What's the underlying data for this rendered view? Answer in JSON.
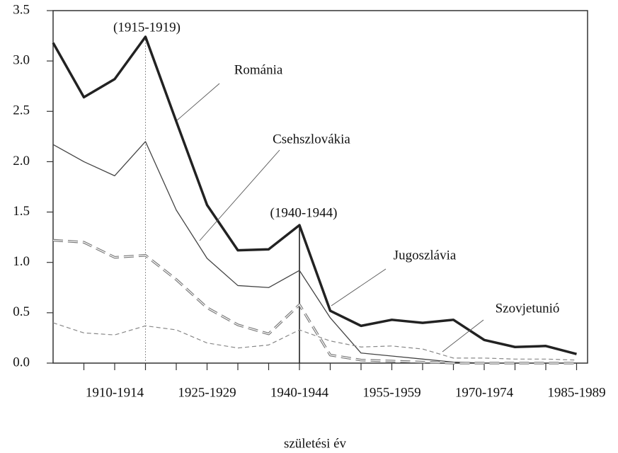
{
  "chart_data": {
    "type": "line",
    "x_label": "születési év",
    "annotations": [
      "(1915-1919)",
      "(1940-1944)"
    ],
    "categories": [
      null,
      null,
      "1910-1914",
      null,
      null,
      "1925-1929",
      null,
      null,
      "1940-1944",
      null,
      null,
      "1955-1959",
      null,
      null,
      "1970-1974",
      null,
      null,
      "1985-1989"
    ],
    "ylim": [
      0,
      3.5
    ],
    "yticks": [
      {
        "value": 0,
        "label": "0.0"
      },
      0.5,
      {
        "value": 1,
        "label": "1.0"
      },
      1.5,
      {
        "value": 2,
        "label": "2.0"
      },
      2.5,
      {
        "value": 3,
        "label": "3.0"
      },
      3.5
    ],
    "series": [
      {
        "name": "Románia",
        "color": "#222222",
        "values": [
          3.18,
          2.64,
          2.82,
          3.24,
          2.4,
          1.57,
          1.12,
          1.13,
          1.37,
          0.52,
          0.37,
          0.43,
          0.4,
          0.43,
          0.23,
          0.16,
          0.17,
          0.09
        ]
      },
      {
        "name": "Csehszlovákia",
        "color": "#444444",
        "values": [
          2.17,
          2.0,
          1.86,
          2.2,
          1.52,
          1.04,
          0.77,
          0.75,
          0.92,
          0.45,
          0.1,
          0.07,
          0.04,
          0.01,
          0.0,
          0.0,
          0.0,
          0.0
        ]
      },
      {
        "name": "Jugoszlávia",
        "color": "#777777",
        "values": [
          1.22,
          1.2,
          1.05,
          1.07,
          0.83,
          0.55,
          0.38,
          0.29,
          0.58,
          0.08,
          0.03,
          0.02,
          0.01,
          0.0,
          0.0,
          0.0,
          0.0,
          0.0
        ]
      },
      {
        "name": "Szovjetunió",
        "color": "#888888",
        "values": [
          0.4,
          0.3,
          0.28,
          0.37,
          0.33,
          0.2,
          0.15,
          0.18,
          0.33,
          0.22,
          0.16,
          0.17,
          0.14,
          0.05,
          0.05,
          0.04,
          0.04,
          0.03
        ]
      }
    ]
  }
}
